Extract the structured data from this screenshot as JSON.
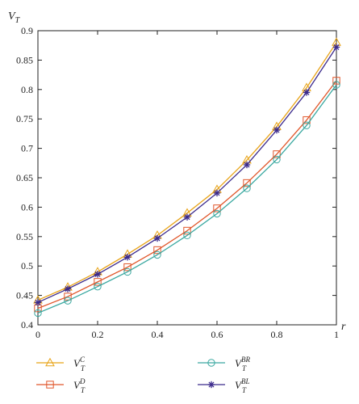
{
  "chart_data": {
    "type": "line",
    "xlabel": "r",
    "ylabel": "V",
    "ylabel_sub": "T",
    "xlim": [
      0,
      1
    ],
    "ylim": [
      0.4,
      0.9
    ],
    "xticks": [
      "0",
      "0.2",
      "0.4",
      "0.6",
      "0.8",
      "1"
    ],
    "yticks": [
      "0.4",
      "0.45",
      "0.5",
      "0.55",
      "0.6",
      "0.65",
      "0.7",
      "0.75",
      "0.8",
      "0.85",
      "0.9"
    ],
    "grid": false,
    "legend_position": "bottom",
    "x": [
      0,
      0.1,
      0.2,
      0.3,
      0.4,
      0.5,
      0.6,
      0.7,
      0.8,
      0.9,
      1.0
    ],
    "series": [
      {
        "name": "C",
        "label_base": "V",
        "label_sub": "T",
        "label_sup": "C",
        "marker": "triangle",
        "color": "#e8a317",
        "values": [
          0.442,
          0.464,
          0.49,
          0.52,
          0.552,
          0.59,
          0.63,
          0.68,
          0.737,
          0.803,
          0.88
        ]
      },
      {
        "name": "D",
        "label_base": "V",
        "label_sub": "T",
        "label_sup": "D",
        "marker": "square",
        "color": "#e0562a",
        "values": [
          0.428,
          0.448,
          0.473,
          0.498,
          0.527,
          0.56,
          0.598,
          0.641,
          0.69,
          0.748,
          0.815
        ]
      },
      {
        "name": "BR",
        "label_base": "V",
        "label_sub": "T",
        "label_sup": "BR",
        "marker": "circle",
        "color": "#3aa8a0",
        "values": [
          0.42,
          0.441,
          0.465,
          0.49,
          0.519,
          0.552,
          0.589,
          0.632,
          0.681,
          0.739,
          0.808
        ]
      },
      {
        "name": "BL",
        "label_base": "V",
        "label_sub": "T",
        "label_sup": "BL",
        "marker": "star",
        "color": "#3b2a8c",
        "values": [
          0.438,
          0.461,
          0.486,
          0.515,
          0.547,
          0.583,
          0.624,
          0.672,
          0.731,
          0.795,
          0.872
        ]
      }
    ]
  }
}
